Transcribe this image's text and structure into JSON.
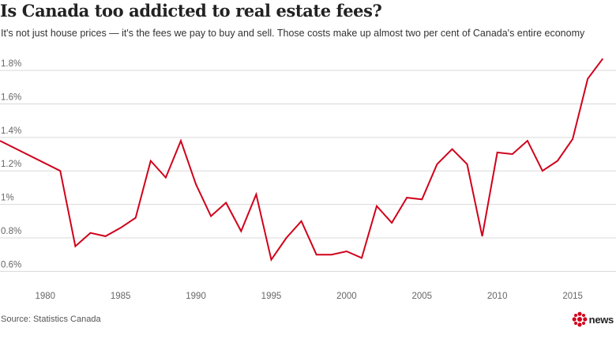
{
  "header": {
    "title": "Is Canada too addicted to real estate fees?",
    "subtitle": "It's not just house prices — it's the fees we pay to buy and sell. Those costs make up almost two per cent of Canada's entire economy"
  },
  "footer": {
    "source": "Source: Statistics Canada",
    "brand": "news"
  },
  "colors": {
    "line": "#d0021b",
    "grid": "#d9d9d9",
    "brand_red": "#d0021b"
  },
  "chart_data": {
    "type": "line",
    "title": "Is Canada too addicted to real estate fees?",
    "xlabel": "",
    "ylabel": "",
    "xlim": [
      1977,
      2017.3
    ],
    "ylim": [
      0.55,
      1.89
    ],
    "x_ticks": [
      1980,
      1985,
      1990,
      1995,
      2000,
      2005,
      2010,
      2015
    ],
    "x_tick_labels": [
      "1980",
      "1985",
      "1990",
      "1995",
      "2000",
      "2005",
      "2010",
      "2015"
    ],
    "y_ticks": [
      0.6,
      0.8,
      1.0,
      1.2,
      1.4,
      1.6,
      1.8
    ],
    "y_tick_labels": [
      "0.6%",
      "0.8%",
      "1%",
      "1.2%",
      "1.4%",
      "1.6%",
      "1.8%"
    ],
    "grid": "horizontal",
    "series": [
      {
        "x": [
          1977,
          1981,
          1982,
          1983,
          1984,
          1985,
          1986,
          1987,
          1988,
          1989,
          1990,
          1991,
          1992,
          1993,
          1994,
          1995,
          1996,
          1997,
          1998,
          1999,
          2000,
          2001,
          2002,
          2003,
          2004,
          2005,
          2006,
          2007,
          2008,
          2009,
          2010,
          2011,
          2012,
          2013,
          2014,
          2015,
          2016,
          2017
        ],
        "values": [
          1.38,
          1.2,
          0.75,
          0.83,
          0.81,
          0.86,
          0.92,
          1.26,
          1.16,
          1.38,
          1.12,
          0.93,
          1.01,
          0.84,
          1.06,
          0.67,
          0.8,
          0.9,
          0.7,
          0.7,
          0.72,
          0.68,
          0.99,
          0.89,
          1.04,
          1.03,
          1.24,
          1.33,
          1.24,
          0.81,
          1.31,
          1.3,
          1.38,
          1.2,
          1.26,
          1.39,
          1.75,
          1.87
        ]
      }
    ]
  }
}
